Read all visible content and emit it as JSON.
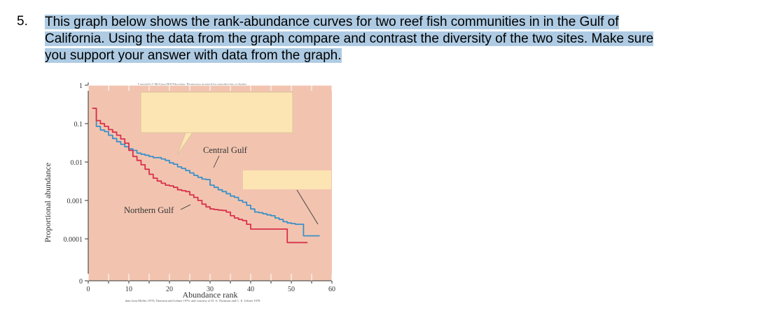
{
  "question": {
    "number": "5.",
    "lines": [
      "This graph below shows the rank-abundance curves for two reef fish communities in in the Gulf of",
      "California. Using the data from the graph compare and contrast the diversity of the two sites. Make sure",
      "you support your answer with data from the graph."
    ]
  },
  "figure": {
    "copyright": "Copyright © McGraw-Hill Education. Permission required for reproduction or display.",
    "source": "data from Molles 1978; Thomson and Lehner 1976; and courtesy of D. A. Thomson and C. E. Lehner 1978"
  },
  "chart_data": {
    "type": "line",
    "title": "",
    "xlabel": "Abundance rank",
    "ylabel": "Proportional abundance",
    "xlim": [
      0,
      60
    ],
    "x_ticks": [
      "0",
      "10",
      "20",
      "30",
      "40",
      "50",
      "60"
    ],
    "y_ticks": [
      "1",
      "0.1",
      "0.01",
      "0.001",
      "0.0001",
      "0"
    ],
    "y_scale": "log",
    "grid": false,
    "background_color": "#f2c4b0",
    "annotations": [
      "Central Gulf",
      "Northern Gulf"
    ],
    "series": [
      {
        "name": "Central Gulf",
        "color": "#3a90c8",
        "points": [
          [
            1,
            0.25
          ],
          [
            2,
            0.085
          ],
          [
            3,
            0.068
          ],
          [
            4,
            0.062
          ],
          [
            5,
            0.05
          ],
          [
            6,
            0.041
          ],
          [
            7,
            0.034
          ],
          [
            8,
            0.029
          ],
          [
            9,
            0.025
          ],
          [
            10,
            0.022
          ],
          [
            11,
            0.02
          ],
          [
            12,
            0.017
          ],
          [
            13,
            0.016
          ],
          [
            14,
            0.015
          ],
          [
            15,
            0.014
          ],
          [
            16,
            0.013
          ],
          [
            17,
            0.013
          ],
          [
            18,
            0.012
          ],
          [
            19,
            0.011
          ],
          [
            20,
            0.0095
          ],
          [
            21,
            0.0088
          ],
          [
            22,
            0.0075
          ],
          [
            23,
            0.0068
          ],
          [
            24,
            0.006
          ],
          [
            25,
            0.0052
          ],
          [
            26,
            0.0045
          ],
          [
            27,
            0.004
          ],
          [
            28,
            0.0036
          ],
          [
            29,
            0.0035
          ],
          [
            30,
            0.0025
          ],
          [
            31,
            0.0022
          ],
          [
            32,
            0.0019
          ],
          [
            33,
            0.0017
          ],
          [
            34,
            0.0015
          ],
          [
            35,
            0.0013
          ],
          [
            36,
            0.0012
          ],
          [
            37,
            0.001
          ],
          [
            38,
            0.0009
          ],
          [
            39,
            0.00075
          ],
          [
            40,
            0.0006
          ],
          [
            41,
            0.0005
          ],
          [
            42,
            0.00048
          ],
          [
            43,
            0.00045
          ],
          [
            44,
            0.00042
          ],
          [
            45,
            0.0004
          ],
          [
            46,
            0.00035
          ],
          [
            47,
            0.00032
          ],
          [
            48,
            0.00028
          ],
          [
            49,
            0.00026
          ],
          [
            50,
            0.00025
          ],
          [
            51,
            0.00024
          ],
          [
            52,
            0.00024
          ],
          [
            53,
            0.00012
          ],
          [
            54,
            0.00012
          ],
          [
            55,
            0.00012
          ],
          [
            56,
            0.00012
          ]
        ]
      },
      {
        "name": "Northern Gulf",
        "color": "#d8304a",
        "points": [
          [
            1,
            0.25
          ],
          [
            2,
            0.12
          ],
          [
            3,
            0.1
          ],
          [
            4,
            0.085
          ],
          [
            5,
            0.07
          ],
          [
            6,
            0.06
          ],
          [
            7,
            0.05
          ],
          [
            8,
            0.04
          ],
          [
            9,
            0.031
          ],
          [
            10,
            0.02
          ],
          [
            11,
            0.014
          ],
          [
            12,
            0.011
          ],
          [
            13,
            0.0085
          ],
          [
            14,
            0.0065
          ],
          [
            15,
            0.0048
          ],
          [
            16,
            0.0038
          ],
          [
            17,
            0.0032
          ],
          [
            18,
            0.0028
          ],
          [
            19,
            0.0025
          ],
          [
            20,
            0.0024
          ],
          [
            21,
            0.0022
          ],
          [
            22,
            0.0019
          ],
          [
            23,
            0.0018
          ],
          [
            24,
            0.0017
          ],
          [
            25,
            0.0014
          ],
          [
            26,
            0.0012
          ],
          [
            27,
            0.001
          ],
          [
            28,
            0.0008
          ],
          [
            29,
            0.00068
          ],
          [
            30,
            0.0006
          ],
          [
            31,
            0.00058
          ],
          [
            32,
            0.00056
          ],
          [
            33,
            0.00055
          ],
          [
            34,
            0.0005
          ],
          [
            35,
            0.0004
          ],
          [
            36,
            0.00035
          ],
          [
            37,
            0.00032
          ],
          [
            38,
            0.0003
          ],
          [
            39,
            0.00024
          ],
          [
            40,
            0.00018
          ],
          [
            41,
            0.00018
          ],
          [
            42,
            0.00018
          ],
          [
            43,
            0.00018
          ],
          [
            44,
            0.00018
          ],
          [
            45,
            0.00018
          ],
          [
            46,
            0.00018
          ],
          [
            47,
            0.00018
          ],
          [
            48,
            0.00018
          ],
          [
            49,
            8e-05
          ],
          [
            50,
            8e-05
          ],
          [
            51,
            8e-05
          ],
          [
            52,
            8e-05
          ],
          [
            53,
            8e-05
          ]
        ]
      }
    ]
  }
}
